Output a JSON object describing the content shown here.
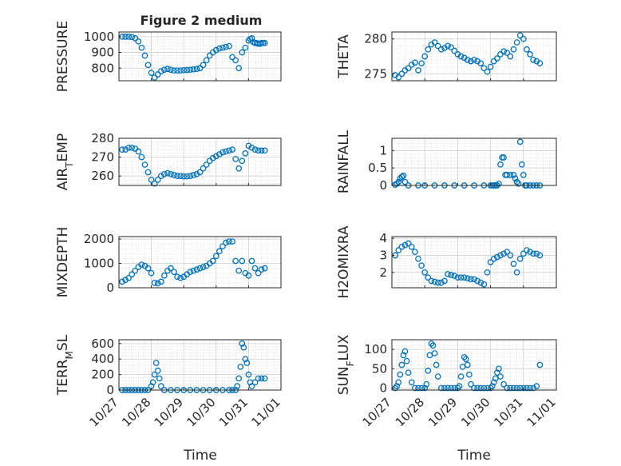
{
  "title": "Figure 2 medium",
  "xlabel": "Time",
  "x_ticks": [
    "10/27",
    "10/28",
    "10/29",
    "10/30",
    "10/31",
    "11/01"
  ],
  "marker_color": "#0072bd",
  "chart_data": [
    {
      "type": "scatter",
      "ylabel": "PRESSURE",
      "ylim": [
        720,
        1030
      ],
      "yticks": [
        800,
        900,
        1000
      ],
      "xlim": [
        0,
        5
      ],
      "grid": true,
      "x": [
        0.1,
        0.2,
        0.3,
        0.4,
        0.5,
        0.6,
        0.7,
        0.8,
        0.9,
        1.0,
        1.1,
        1.2,
        1.3,
        1.4,
        1.5,
        1.6,
        1.7,
        1.8,
        1.9,
        2.0,
        2.1,
        2.2,
        2.3,
        2.4,
        2.5,
        2.6,
        2.7,
        2.8,
        2.9,
        3.0,
        3.1,
        3.2,
        3.3,
        3.4,
        3.5,
        3.6,
        3.7,
        3.8,
        3.9,
        4.0,
        4.05,
        4.1,
        4.15,
        4.2,
        4.25,
        4.3,
        4.35,
        4.4,
        4.45,
        4.5
      ],
      "y": [
        1000,
        1000,
        1000,
        998,
        990,
        970,
        930,
        880,
        820,
        770,
        740,
        760,
        780,
        790,
        795,
        790,
        785,
        785,
        785,
        787,
        788,
        790,
        792,
        795,
        800,
        820,
        850,
        880,
        900,
        915,
        925,
        930,
        935,
        940,
        870,
        850,
        800,
        900,
        930,
        975,
        985,
        990,
        965,
        960,
        960,
        955,
        955,
        960,
        960,
        960
      ]
    },
    {
      "type": "scatter",
      "ylabel": "THETA",
      "ylim": [
        274,
        281
      ],
      "yticks": [
        275,
        280
      ],
      "xlim": [
        0,
        5
      ],
      "grid": true,
      "x": [
        0.1,
        0.2,
        0.3,
        0.4,
        0.5,
        0.6,
        0.7,
        0.8,
        0.9,
        1.0,
        1.1,
        1.2,
        1.3,
        1.4,
        1.5,
        1.6,
        1.7,
        1.8,
        1.9,
        2.0,
        2.1,
        2.2,
        2.3,
        2.4,
        2.5,
        2.6,
        2.7,
        2.8,
        2.9,
        3.0,
        3.1,
        3.2,
        3.3,
        3.4,
        3.5,
        3.6,
        3.7,
        3.8,
        3.9,
        4.0,
        4.1,
        4.2,
        4.3,
        4.4,
        4.5
      ],
      "y": [
        274.8,
        274.5,
        275.0,
        275.5,
        275.8,
        276.3,
        276.6,
        275.5,
        276.5,
        277.5,
        278.5,
        279.2,
        279.5,
        279.0,
        278.5,
        278.7,
        279.0,
        278.8,
        278.3,
        277.8,
        277.5,
        277.3,
        277.0,
        276.8,
        277.0,
        276.8,
        276.5,
        275.8,
        275.3,
        276.0,
        276.8,
        277.2,
        277.8,
        278.2,
        278.0,
        277.5,
        278.5,
        279.5,
        280.5,
        280.0,
        278.5,
        277.8,
        277.0,
        276.8,
        276.5
      ]
    },
    {
      "type": "scatter",
      "ylabel": "AIR_TEMP",
      "ylim": [
        255,
        280
      ],
      "yticks": [
        260,
        270,
        280
      ],
      "xlim": [
        0,
        5
      ],
      "grid": true,
      "x": [
        0.1,
        0.2,
        0.3,
        0.4,
        0.5,
        0.6,
        0.7,
        0.8,
        0.9,
        1.0,
        1.1,
        1.2,
        1.3,
        1.4,
        1.5,
        1.6,
        1.7,
        1.8,
        1.9,
        2.0,
        2.1,
        2.2,
        2.3,
        2.4,
        2.5,
        2.6,
        2.7,
        2.8,
        2.9,
        3.0,
        3.1,
        3.2,
        3.3,
        3.4,
        3.5,
        3.6,
        3.7,
        3.8,
        3.9,
        4.0,
        4.1,
        4.2,
        4.3,
        4.4,
        4.5
      ],
      "y": [
        274,
        274,
        275,
        275,
        274.5,
        273,
        270,
        266,
        262,
        258,
        256,
        258,
        260,
        261,
        261.5,
        261,
        260.5,
        260,
        260,
        259.8,
        259.8,
        260,
        260.5,
        261,
        262,
        264,
        266,
        268,
        269.5,
        270.5,
        271.5,
        272.5,
        273,
        273.5,
        274,
        269,
        264,
        268,
        272,
        276,
        275,
        274,
        273.5,
        273.5,
        273.5
      ]
    },
    {
      "type": "scatter",
      "ylabel": "RAINFALL",
      "ylim": [
        0,
        1.35
      ],
      "yticks": [
        0,
        0.5,
        1
      ],
      "xlim": [
        0,
        5
      ],
      "grid": true,
      "x": [
        0.1,
        0.15,
        0.2,
        0.25,
        0.3,
        0.35,
        0.4,
        0.5,
        0.8,
        1.0,
        1.3,
        1.6,
        1.9,
        2.2,
        2.5,
        2.8,
        3.0,
        3.05,
        3.1,
        3.15,
        3.2,
        3.25,
        3.3,
        3.35,
        3.4,
        3.45,
        3.5,
        3.6,
        3.7,
        3.75,
        3.8,
        3.85,
        3.9,
        3.95,
        4.0,
        4.05,
        4.1,
        4.2,
        4.3,
        4.4,
        4.5
      ],
      "y": [
        0.02,
        0.05,
        0.1,
        0.2,
        0.25,
        0.28,
        0.1,
        0,
        0,
        0,
        0,
        0,
        0,
        0,
        0,
        0,
        0,
        0,
        0,
        0,
        0,
        0.05,
        0.6,
        0.8,
        0.8,
        0.3,
        0.3,
        0.3,
        0.3,
        0.2,
        0.1,
        0.05,
        1.25,
        0.6,
        0.3,
        0,
        0,
        0,
        0,
        0,
        0
      ]
    },
    {
      "type": "scatter",
      "ylabel": "MIXDEPTH",
      "ylim": [
        0,
        2100
      ],
      "yticks": [
        0,
        1000,
        2000
      ],
      "xlim": [
        0,
        5
      ],
      "grid": true,
      "x": [
        0.1,
        0.2,
        0.3,
        0.4,
        0.5,
        0.6,
        0.7,
        0.8,
        0.9,
        1.0,
        1.1,
        1.2,
        1.3,
        1.4,
        1.5,
        1.6,
        1.7,
        1.8,
        1.9,
        2.0,
        2.1,
        2.2,
        2.3,
        2.4,
        2.5,
        2.6,
        2.7,
        2.8,
        2.9,
        3.0,
        3.1,
        3.2,
        3.3,
        3.4,
        3.5,
        3.6,
        3.7,
        3.8,
        3.9,
        4.0,
        4.1,
        4.2,
        4.3,
        4.4,
        4.5
      ],
      "y": [
        250,
        320,
        400,
        550,
        700,
        850,
        950,
        900,
        800,
        600,
        200,
        180,
        250,
        500,
        700,
        800,
        650,
        450,
        400,
        450,
        550,
        650,
        700,
        750,
        800,
        850,
        900,
        1000,
        1100,
        1300,
        1500,
        1700,
        1850,
        1900,
        1900,
        1100,
        700,
        1100,
        600,
        500,
        1100,
        800,
        600,
        750,
        800
      ]
    },
    {
      "type": "scatter",
      "ylabel": "H2OMIXRA",
      "ylim": [
        1.1,
        4.1
      ],
      "yticks": [
        2,
        3,
        4
      ],
      "xlim": [
        0,
        5
      ],
      "grid": true,
      "x": [
        0.1,
        0.2,
        0.3,
        0.4,
        0.5,
        0.6,
        0.7,
        0.8,
        0.9,
        1.0,
        1.1,
        1.2,
        1.3,
        1.4,
        1.5,
        1.6,
        1.7,
        1.8,
        1.9,
        2.0,
        2.1,
        2.2,
        2.3,
        2.4,
        2.5,
        2.6,
        2.7,
        2.8,
        2.9,
        3.0,
        3.1,
        3.2,
        3.3,
        3.4,
        3.5,
        3.6,
        3.7,
        3.8,
        3.9,
        4.0,
        4.1,
        4.2,
        4.3,
        4.4,
        4.5
      ],
      "y": [
        3.0,
        3.3,
        3.5,
        3.6,
        3.7,
        3.5,
        3.2,
        2.8,
        2.4,
        2.0,
        1.7,
        1.5,
        1.45,
        1.4,
        1.4,
        1.5,
        1.9,
        1.85,
        1.8,
        1.7,
        1.7,
        1.7,
        1.65,
        1.6,
        1.6,
        1.5,
        1.4,
        1.3,
        2.0,
        2.6,
        2.8,
        2.9,
        3.0,
        3.1,
        3.2,
        3.0,
        2.5,
        2.0,
        2.8,
        3.1,
        3.3,
        3.2,
        3.1,
        3.1,
        3.0
      ]
    },
    {
      "type": "scatter",
      "ylabel": "TERR_MSL",
      "ylim": [
        0,
        650
      ],
      "yticks": [
        0,
        200,
        400,
        600
      ],
      "xlim": [
        0,
        5
      ],
      "grid": true,
      "x": [
        0.1,
        0.2,
        0.3,
        0.4,
        0.5,
        0.6,
        0.7,
        0.8,
        0.9,
        1.0,
        1.05,
        1.1,
        1.15,
        1.2,
        1.25,
        1.3,
        1.4,
        1.6,
        1.8,
        2.0,
        2.2,
        2.4,
        2.6,
        2.8,
        3.0,
        3.2,
        3.4,
        3.5,
        3.6,
        3.65,
        3.7,
        3.75,
        3.8,
        3.85,
        3.9,
        3.95,
        4.0,
        4.05,
        4.1,
        4.2,
        4.3,
        4.4,
        4.5
      ],
      "y": [
        0,
        0,
        0,
        0,
        0,
        0,
        0,
        0,
        0,
        50,
        100,
        200,
        350,
        250,
        150,
        50,
        0,
        0,
        0,
        0,
        0,
        0,
        0,
        0,
        0,
        0,
        0,
        0,
        0,
        50,
        150,
        300,
        600,
        550,
        400,
        350,
        200,
        100,
        50,
        100,
        150,
        150,
        150
      ]
    },
    {
      "type": "scatter",
      "ylabel": "SUN_FLUX",
      "ylim": [
        -5,
        125
      ],
      "yticks": [
        0,
        50,
        100
      ],
      "xlim": [
        0,
        5
      ],
      "grid": true,
      "x": [
        0.1,
        0.15,
        0.2,
        0.25,
        0.3,
        0.35,
        0.4,
        0.45,
        0.5,
        0.6,
        0.7,
        0.8,
        0.9,
        1.0,
        1.05,
        1.1,
        1.15,
        1.2,
        1.25,
        1.3,
        1.35,
        1.4,
        1.5,
        1.6,
        1.7,
        1.8,
        1.9,
        2.0,
        2.05,
        2.1,
        2.15,
        2.2,
        2.25,
        2.3,
        2.35,
        2.4,
        2.5,
        2.6,
        2.7,
        2.8,
        2.9,
        3.0,
        3.05,
        3.1,
        3.15,
        3.2,
        3.25,
        3.3,
        3.4,
        3.5,
        3.6,
        3.7,
        3.8,
        3.9,
        4.0,
        4.1,
        4.2,
        4.3,
        4.4,
        4.5
      ],
      "y": [
        0,
        5,
        15,
        35,
        60,
        85,
        95,
        70,
        40,
        15,
        0,
        0,
        0,
        0,
        10,
        45,
        85,
        115,
        110,
        90,
        60,
        30,
        0,
        0,
        0,
        0,
        0,
        0,
        5,
        30,
        55,
        80,
        75,
        60,
        35,
        10,
        0,
        0,
        0,
        0,
        0,
        0,
        5,
        15,
        25,
        40,
        50,
        30,
        10,
        0,
        0,
        0,
        0,
        0,
        0,
        0,
        0,
        0,
        5,
        60
      ]
    }
  ]
}
